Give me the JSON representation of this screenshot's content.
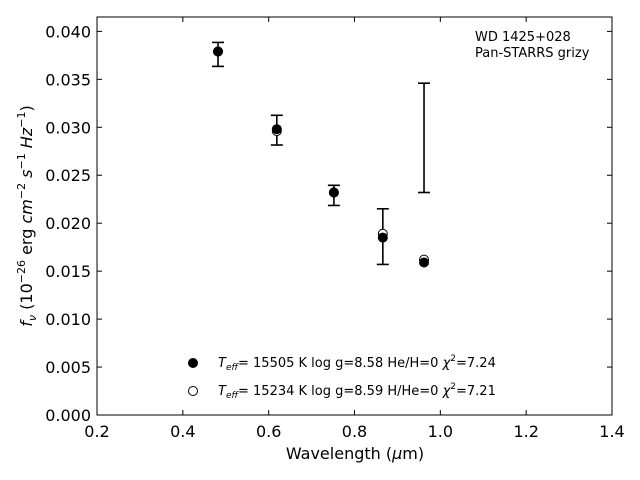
{
  "chart_data": {
    "type": "scatter",
    "xlim": [
      0.2,
      1.4
    ],
    "ylim": [
      0.0,
      0.0415
    ],
    "x_ticks": [
      "0.2",
      "0.4",
      "0.6",
      "0.8",
      "1.0",
      "1.2",
      "1.4"
    ],
    "x_tick_values": [
      0.2,
      0.4,
      0.6,
      0.8,
      1.0,
      1.2,
      1.4
    ],
    "y_ticks": [
      "0.000",
      "0.005",
      "0.010",
      "0.015",
      "0.020",
      "0.025",
      "0.030",
      "0.035",
      "0.040"
    ],
    "y_tick_values": [
      0.0,
      0.005,
      0.01,
      0.015,
      0.02,
      0.025,
      0.03,
      0.035,
      0.04
    ],
    "xlabel": {
      "pre": "Wavelength (",
      "mu": "μ",
      "post": "m)"
    },
    "ylabel": {
      "f": "f",
      "nu": "ν",
      "paren_open": " (10",
      "exp1": "−26",
      "erg": " erg ",
      "cm": "cm",
      "exp2": "−2",
      "s": " s",
      "exp3": "−1",
      "hz": " Hz",
      "exp4": "−1",
      "paren_close": ")"
    },
    "annotation": [
      "WD 1425+028",
      "Pan-STARRS grizy"
    ],
    "grid": false,
    "observed": {
      "x": [
        0.482,
        0.619,
        0.752,
        0.866,
        0.962
      ],
      "y": [
        0.0376,
        0.0297,
        0.0229,
        0.0186,
        0.0289
      ],
      "yerr": [
        0.00125,
        0.00155,
        0.00105,
        0.0029,
        0.0057
      ]
    },
    "series": [
      {
        "marker": "filled-circle",
        "legend": {
          "T": "T",
          "eff": "eff",
          "rest": "= 15505 K  log g=8.58  He/H=0  ",
          "chi": "χ",
          "two": "2",
          "val": "=7.24"
        },
        "x": [
          0.482,
          0.619,
          0.752,
          0.866,
          0.962
        ],
        "y": [
          0.0379,
          0.0298,
          0.0232,
          0.0185,
          0.0159
        ]
      },
      {
        "marker": "open-circle",
        "legend": {
          "T": "T",
          "eff": "eff",
          "rest": "= 15234 K  log g=8.59  H/He=0  ",
          "chi": "χ",
          "two": "2",
          "val": "=7.21"
        },
        "x": [
          0.482,
          0.619,
          0.752,
          0.866,
          0.962
        ],
        "y": [
          0.0379,
          0.0296,
          0.0232,
          0.0189,
          0.0162
        ]
      }
    ]
  }
}
